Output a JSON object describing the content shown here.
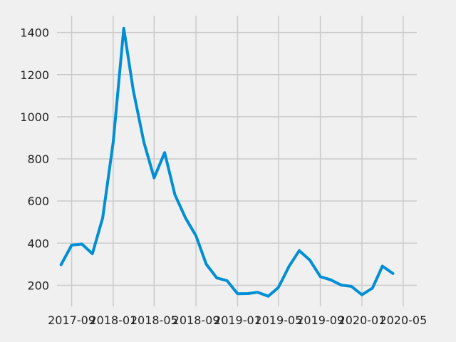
{
  "chart_data": {
    "type": "line",
    "title": "",
    "xlabel": "",
    "ylabel": "",
    "x_tick_labels": [
      "2017-09",
      "2018-01",
      "2018-05",
      "2018-09",
      "2019-01",
      "2019-05",
      "2019-09",
      "2020-01",
      "2020-05"
    ],
    "y_tick_labels": [
      "200",
      "400",
      "600",
      "800",
      "1000",
      "1200",
      "1400"
    ],
    "y_ticks": [
      200,
      400,
      600,
      800,
      1000,
      1200,
      1400
    ],
    "ylim": [
      100,
      1480
    ],
    "xlim": [
      "2017-07-20",
      "2020-06-10"
    ],
    "grid": true,
    "series": [
      {
        "color": "#008fd5",
        "points": [
          {
            "x": "2017-08-01",
            "y": 298
          },
          {
            "x": "2017-09-01",
            "y": 391
          },
          {
            "x": "2017-10-01",
            "y": 396
          },
          {
            "x": "2017-11-01",
            "y": 350
          },
          {
            "x": "2017-12-01",
            "y": 520
          },
          {
            "x": "2018-01-01",
            "y": 880
          },
          {
            "x": "2018-02-01",
            "y": 1420
          },
          {
            "x": "2018-03-01",
            "y": 1125
          },
          {
            "x": "2018-04-01",
            "y": 880
          },
          {
            "x": "2018-05-01",
            "y": 710
          },
          {
            "x": "2018-06-01",
            "y": 830
          },
          {
            "x": "2018-07-01",
            "y": 630
          },
          {
            "x": "2018-08-01",
            "y": 520
          },
          {
            "x": "2018-09-01",
            "y": 435
          },
          {
            "x": "2018-10-01",
            "y": 300
          },
          {
            "x": "2018-11-01",
            "y": 235
          },
          {
            "x": "2018-12-01",
            "y": 222
          },
          {
            "x": "2019-01-01",
            "y": 160
          },
          {
            "x": "2019-02-01",
            "y": 161
          },
          {
            "x": "2019-03-01",
            "y": 167
          },
          {
            "x": "2019-04-01",
            "y": 148
          },
          {
            "x": "2019-05-01",
            "y": 190
          },
          {
            "x": "2019-06-01",
            "y": 290
          },
          {
            "x": "2019-07-01",
            "y": 365
          },
          {
            "x": "2019-08-01",
            "y": 320
          },
          {
            "x": "2019-09-01",
            "y": 241
          },
          {
            "x": "2019-10-01",
            "y": 226
          },
          {
            "x": "2019-11-01",
            "y": 201
          },
          {
            "x": "2019-12-01",
            "y": 195
          },
          {
            "x": "2020-01-01",
            "y": 155
          },
          {
            "x": "2020-02-01",
            "y": 187
          },
          {
            "x": "2020-03-01",
            "y": 291
          },
          {
            "x": "2020-04-01",
            "y": 256
          }
        ]
      }
    ]
  }
}
